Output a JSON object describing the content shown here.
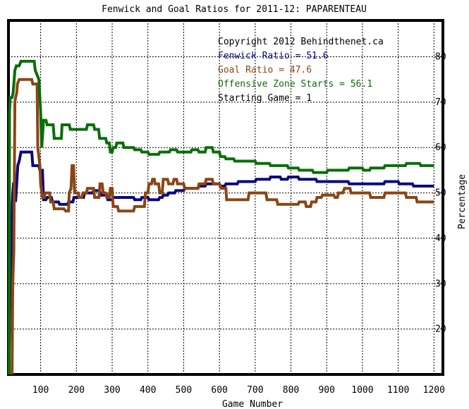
{
  "chart_data": {
    "type": "line",
    "title": "Fenwick and Goal Ratios for 2011-12: PAPARENTEAU",
    "xlabel": "Game Number",
    "ylabel": "Percentage",
    "xlim": [
      10,
      1225
    ],
    "ylim": [
      10,
      88
    ],
    "x_ticks": [
      100,
      200,
      300,
      400,
      500,
      600,
      700,
      800,
      900,
      1000,
      1100,
      1200
    ],
    "y_ticks": [
      20,
      30,
      40,
      50,
      60,
      70,
      80
    ],
    "grid": true,
    "legend_placement": "top-right",
    "annotations": [
      {
        "text": "Copyright 2012 Behindthenet.ca",
        "color": "#000000"
      },
      {
        "text": "Fenwick Ratio = 51.6",
        "color": "#0a0a7a"
      },
      {
        "text": "Goal Ratio = 47.6",
        "color": "#8b4513"
      },
      {
        "text": "Offensive Zone Starts = 56.1",
        "color": "#0a6e0a"
      },
      {
        "text": "Starting Game = 1",
        "color": "#000000"
      }
    ],
    "series": [
      {
        "name": "Fenwick Ratio",
        "color": "#0a0a7a",
        "points": [
          [
            12,
            15
          ],
          [
            15,
            30
          ],
          [
            18,
            34
          ],
          [
            20,
            46
          ],
          [
            22,
            50
          ],
          [
            24,
            52
          ],
          [
            27,
            52
          ],
          [
            30,
            48
          ],
          [
            33,
            52
          ],
          [
            36,
            56
          ],
          [
            40,
            57
          ],
          [
            45,
            59
          ],
          [
            75,
            59
          ],
          [
            78,
            56
          ],
          [
            95,
            56
          ],
          [
            98,
            55
          ],
          [
            105,
            55
          ],
          [
            108,
            48.5
          ],
          [
            115,
            48.5
          ],
          [
            118,
            49
          ],
          [
            130,
            49
          ],
          [
            133,
            48
          ],
          [
            150,
            48
          ],
          [
            153,
            47.5
          ],
          [
            175,
            47.5
          ],
          [
            178,
            48
          ],
          [
            190,
            48
          ],
          [
            193,
            49
          ],
          [
            220,
            49
          ],
          [
            223,
            50
          ],
          [
            245,
            50
          ],
          [
            248,
            50.5
          ],
          [
            265,
            50.5
          ],
          [
            268,
            49.5
          ],
          [
            285,
            49.5
          ],
          [
            288,
            48.5
          ],
          [
            300,
            48.5
          ],
          [
            303,
            49
          ],
          [
            360,
            49
          ],
          [
            363,
            48.5
          ],
          [
            380,
            48.5
          ],
          [
            383,
            49
          ],
          [
            400,
            49
          ],
          [
            403,
            48.5
          ],
          [
            430,
            48.5
          ],
          [
            433,
            49
          ],
          [
            440,
            49
          ],
          [
            443,
            49.5
          ],
          [
            455,
            49.5
          ],
          [
            458,
            50
          ],
          [
            475,
            50
          ],
          [
            478,
            50.5
          ],
          [
            500,
            50.5
          ],
          [
            503,
            51
          ],
          [
            540,
            51
          ],
          [
            543,
            51.5
          ],
          [
            560,
            51.5
          ],
          [
            563,
            52
          ],
          [
            600,
            52
          ],
          [
            603,
            51.5
          ],
          [
            615,
            51.5
          ],
          [
            618,
            52
          ],
          [
            650,
            52
          ],
          [
            653,
            52.5
          ],
          [
            700,
            52.5
          ],
          [
            703,
            53
          ],
          [
            740,
            53
          ],
          [
            743,
            53.5
          ],
          [
            770,
            53.5
          ],
          [
            773,
            53
          ],
          [
            790,
            53
          ],
          [
            793,
            53.5
          ],
          [
            820,
            53.5
          ],
          [
            823,
            53
          ],
          [
            870,
            53
          ],
          [
            873,
            52.5
          ],
          [
            960,
            52.5
          ],
          [
            963,
            52
          ],
          [
            1060,
            52
          ],
          [
            1063,
            52.5
          ],
          [
            1100,
            52.5
          ],
          [
            1103,
            52
          ],
          [
            1140,
            52
          ],
          [
            1143,
            51.5
          ],
          [
            1200,
            51.5
          ]
        ]
      },
      {
        "name": "Goal Ratio",
        "color": "#8b4513",
        "points": [
          [
            20,
            0
          ],
          [
            22,
            30
          ],
          [
            25,
            37
          ],
          [
            28,
            70
          ],
          [
            30,
            71
          ],
          [
            33,
            72
          ],
          [
            35,
            74
          ],
          [
            40,
            75
          ],
          [
            75,
            75
          ],
          [
            78,
            74
          ],
          [
            90,
            74
          ],
          [
            92,
            60
          ],
          [
            95,
            58
          ],
          [
            98,
            56
          ],
          [
            100,
            52
          ],
          [
            103,
            50
          ],
          [
            105,
            49
          ],
          [
            110,
            49
          ],
          [
            113,
            50
          ],
          [
            125,
            50
          ],
          [
            128,
            48
          ],
          [
            135,
            48
          ],
          [
            138,
            46.5
          ],
          [
            140,
            46.5
          ],
          [
            158,
            46.5
          ],
          [
            165,
            46.5
          ],
          [
            170,
            46
          ],
          [
            178,
            46
          ],
          [
            180,
            50
          ],
          [
            185,
            51
          ],
          [
            188,
            56
          ],
          [
            192,
            56
          ],
          [
            195,
            50
          ],
          [
            205,
            50
          ],
          [
            208,
            49
          ],
          [
            215,
            49
          ],
          [
            218,
            50
          ],
          [
            228,
            50
          ],
          [
            231,
            51
          ],
          [
            248,
            51
          ],
          [
            251,
            49
          ],
          [
            263,
            49
          ],
          [
            266,
            52
          ],
          [
            272,
            52
          ],
          [
            275,
            50
          ],
          [
            282,
            50
          ],
          [
            285,
            49
          ],
          [
            292,
            49
          ],
          [
            295,
            51
          ],
          [
            300,
            51
          ],
          [
            303,
            47
          ],
          [
            315,
            47
          ],
          [
            318,
            46
          ],
          [
            360,
            46
          ],
          [
            363,
            47
          ],
          [
            390,
            47
          ],
          [
            393,
            50
          ],
          [
            400,
            50
          ],
          [
            403,
            52
          ],
          [
            410,
            52
          ],
          [
            413,
            53
          ],
          [
            418,
            53
          ],
          [
            420,
            52
          ],
          [
            430,
            52
          ],
          [
            433,
            50
          ],
          [
            440,
            50
          ],
          [
            443,
            53
          ],
          [
            455,
            53
          ],
          [
            458,
            52
          ],
          [
            470,
            52
          ],
          [
            473,
            53
          ],
          [
            480,
            53
          ],
          [
            483,
            52
          ],
          [
            500,
            52
          ],
          [
            503,
            51
          ],
          [
            540,
            51
          ],
          [
            543,
            52
          ],
          [
            560,
            52
          ],
          [
            563,
            53
          ],
          [
            580,
            53
          ],
          [
            583,
            52
          ],
          [
            600,
            52
          ],
          [
            605,
            51
          ],
          [
            618,
            51
          ],
          [
            620,
            48.5
          ],
          [
            680,
            48.5
          ],
          [
            683,
            50
          ],
          [
            730,
            50
          ],
          [
            733,
            48.5
          ],
          [
            760,
            48.5
          ],
          [
            763,
            47.5
          ],
          [
            820,
            47.5
          ],
          [
            823,
            48
          ],
          [
            840,
            48
          ],
          [
            843,
            47
          ],
          [
            855,
            47
          ],
          [
            858,
            48
          ],
          [
            870,
            48
          ],
          [
            873,
            49
          ],
          [
            885,
            49
          ],
          [
            888,
            49.5
          ],
          [
            920,
            49.5
          ],
          [
            923,
            49
          ],
          [
            930,
            49
          ],
          [
            933,
            50
          ],
          [
            945,
            50
          ],
          [
            950,
            51
          ],
          [
            965,
            51
          ],
          [
            968,
            50
          ],
          [
            1020,
            50
          ],
          [
            1023,
            49
          ],
          [
            1060,
            49
          ],
          [
            1063,
            50
          ],
          [
            1120,
            50
          ],
          [
            1123,
            49
          ],
          [
            1150,
            49
          ],
          [
            1153,
            48
          ],
          [
            1200,
            48
          ]
        ]
      },
      {
        "name": "Offensive Zone Starts",
        "color": "#0a6e0a",
        "points": [
          [
            12,
            0
          ],
          [
            13,
            68
          ],
          [
            15,
            71
          ],
          [
            20,
            71
          ],
          [
            23,
            72
          ],
          [
            28,
            77
          ],
          [
            32,
            78
          ],
          [
            40,
            78
          ],
          [
            45,
            79
          ],
          [
            82,
            79
          ],
          [
            85,
            77
          ],
          [
            90,
            76
          ],
          [
            95,
            75
          ],
          [
            100,
            68
          ],
          [
            103,
            60
          ],
          [
            108,
            66
          ],
          [
            115,
            66
          ],
          [
            118,
            65
          ],
          [
            135,
            65
          ],
          [
            138,
            62
          ],
          [
            140,
            62
          ],
          [
            158,
            62
          ],
          [
            160,
            65
          ],
          [
            180,
            65
          ],
          [
            183,
            64
          ],
          [
            228,
            64
          ],
          [
            231,
            65
          ],
          [
            248,
            65
          ],
          [
            251,
            64
          ],
          [
            262,
            64
          ],
          [
            265,
            62
          ],
          [
            275,
            62
          ],
          [
            278,
            62
          ],
          [
            282,
            62
          ],
          [
            285,
            61
          ],
          [
            292,
            61
          ],
          [
            295,
            59
          ],
          [
            300,
            59
          ],
          [
            303,
            60
          ],
          [
            310,
            60
          ],
          [
            313,
            61
          ],
          [
            330,
            61
          ],
          [
            333,
            60
          ],
          [
            360,
            60
          ],
          [
            363,
            59.5
          ],
          [
            380,
            59.5
          ],
          [
            383,
            59
          ],
          [
            400,
            59
          ],
          [
            403,
            58.5
          ],
          [
            430,
            58.5
          ],
          [
            433,
            59
          ],
          [
            460,
            59
          ],
          [
            463,
            59.5
          ],
          [
            480,
            59.5
          ],
          [
            483,
            59
          ],
          [
            520,
            59
          ],
          [
            523,
            59.5
          ],
          [
            540,
            59.5
          ],
          [
            543,
            59
          ],
          [
            560,
            59
          ],
          [
            563,
            60
          ],
          [
            580,
            60
          ],
          [
            583,
            59
          ],
          [
            600,
            59
          ],
          [
            603,
            58
          ],
          [
            615,
            58
          ],
          [
            618,
            57.5
          ],
          [
            640,
            57.5
          ],
          [
            643,
            57
          ],
          [
            700,
            57
          ],
          [
            703,
            56.5
          ],
          [
            740,
            56.5
          ],
          [
            743,
            56
          ],
          [
            790,
            56
          ],
          [
            793,
            55.5
          ],
          [
            820,
            55.5
          ],
          [
            823,
            55
          ],
          [
            860,
            55
          ],
          [
            863,
            54.5
          ],
          [
            900,
            54.5
          ],
          [
            903,
            55
          ],
          [
            960,
            55
          ],
          [
            963,
            55.5
          ],
          [
            1000,
            55.5
          ],
          [
            1003,
            55
          ],
          [
            1020,
            55
          ],
          [
            1023,
            55.5
          ],
          [
            1060,
            55.5
          ],
          [
            1063,
            56
          ],
          [
            1120,
            56
          ],
          [
            1123,
            56.5
          ],
          [
            1160,
            56.5
          ],
          [
            1163,
            56
          ],
          [
            1200,
            56
          ]
        ]
      }
    ]
  }
}
